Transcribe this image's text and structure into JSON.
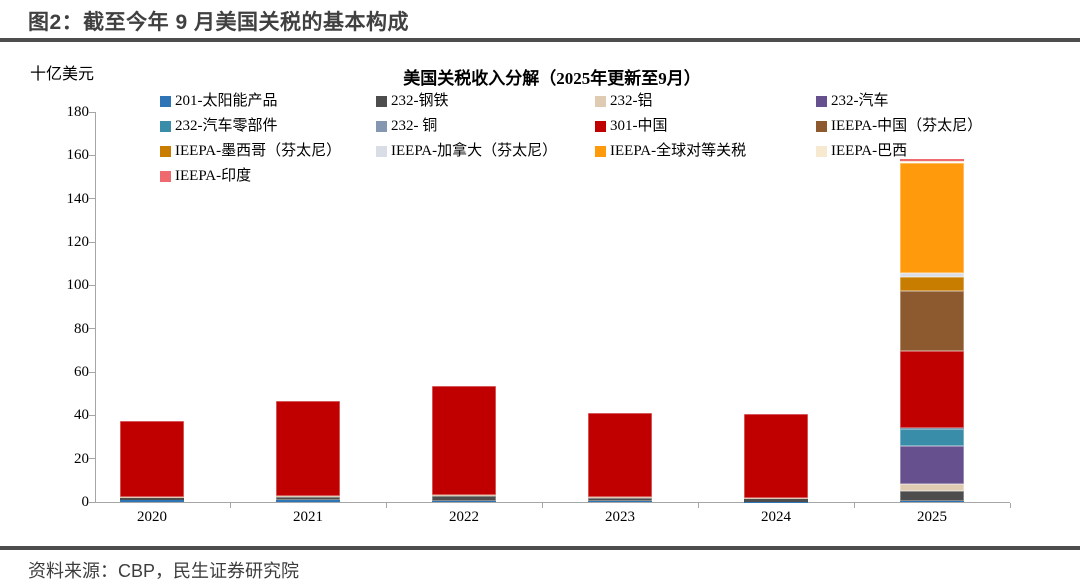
{
  "header": {
    "title": "图2：截至今年 9 月美国关税的基本构成"
  },
  "footer": {
    "source": "资料来源：CBP，民生证券研究院"
  },
  "chart_data": {
    "type": "bar",
    "stacked": true,
    "title": "美国关税收入分解（2025年更新至9月）",
    "unit_label": "十亿美元",
    "xlabel": "",
    "ylabel": "十亿美元",
    "ylim": [
      0,
      180
    ],
    "ytick_step": 20,
    "grid": false,
    "legend_position": "top",
    "categories": [
      "2020",
      "2021",
      "2022",
      "2023",
      "2024",
      "2025"
    ],
    "series": [
      {
        "name": "201-太阳能产品",
        "color": "#2E75B6",
        "values": [
          0.9,
          0.9,
          0.5,
          0.3,
          0.2,
          0.3
        ]
      },
      {
        "name": "232-钢铁",
        "color": "#4D4D4D",
        "values": [
          1.2,
          1.5,
          2.2,
          1.4,
          1.2,
          4.8
        ]
      },
      {
        "name": "232-铝",
        "color": "#DFCBB1",
        "values": [
          0.4,
          0.5,
          0.6,
          0.5,
          0.5,
          3.4
        ]
      },
      {
        "name": "232-汽车",
        "color": "#66508E",
        "values": [
          0,
          0,
          0,
          0,
          0,
          17.2
        ]
      },
      {
        "name": "232-汽车零部件",
        "color": "#3A8DA8",
        "values": [
          0,
          0,
          0,
          0,
          0,
          8.2
        ]
      },
      {
        "name": "232- 铜",
        "color": "#8496B0",
        "values": [
          0,
          0,
          0,
          0,
          0,
          0.4
        ]
      },
      {
        "name": "301-中国",
        "color": "#C00000",
        "values": [
          34.9,
          43.9,
          50.2,
          39.0,
          38.6,
          35.4
        ]
      },
      {
        "name": "IEEPA-中国（芬太尼）",
        "color": "#8C5A2E",
        "values": [
          0,
          0,
          0,
          0,
          0,
          27.8
        ]
      },
      {
        "name": "IEEPA-墨西哥（芬太尼）",
        "color": "#C87C00",
        "values": [
          0,
          0,
          0,
          0,
          0,
          6.5
        ]
      },
      {
        "name": "IEEPA-加拿大（芬太尼）",
        "color": "#D9DDE5",
        "values": [
          0,
          0,
          0,
          0,
          0,
          1.9
        ]
      },
      {
        "name": "IEEPA-全球对等关税",
        "color": "#FF9A0D",
        "values": [
          0,
          0,
          0,
          0,
          0,
          50.8
        ]
      },
      {
        "name": "IEEPA-巴西",
        "color": "#F7E9CF",
        "values": [
          0,
          0,
          0,
          0,
          0,
          0.6
        ]
      },
      {
        "name": "IEEPA-印度",
        "color": "#EF6A6E",
        "values": [
          0,
          0,
          0,
          0,
          0,
          1.2
        ]
      }
    ],
    "totals": [
      37.4,
      46.8,
      53.5,
      41.2,
      40.5,
      158.5
    ]
  }
}
